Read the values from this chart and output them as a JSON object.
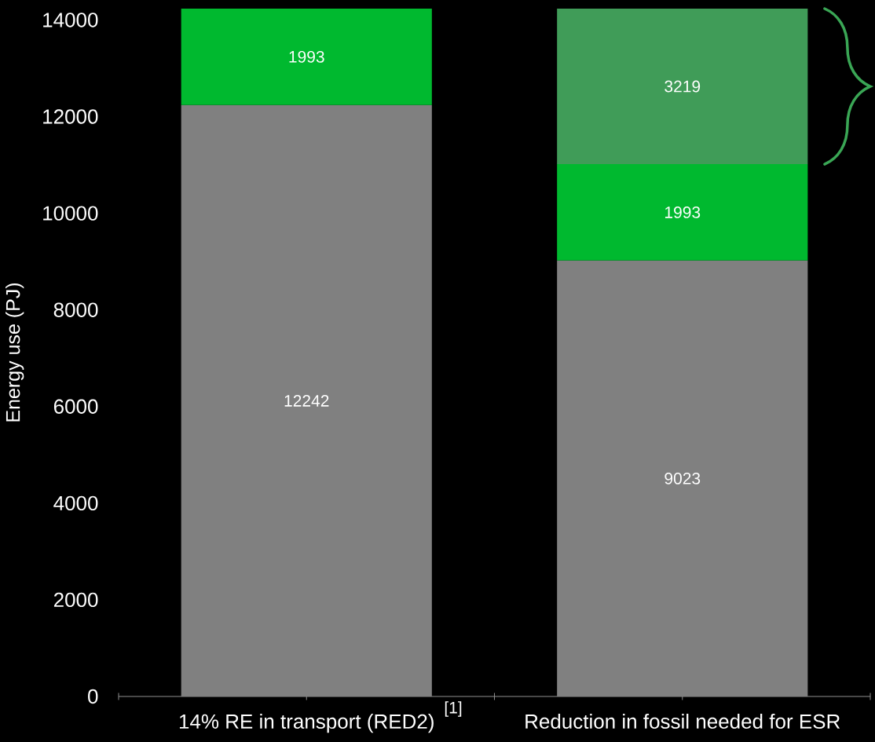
{
  "chart_data": {
    "type": "bar",
    "stacked": true,
    "ylabel": "Energy use (PJ)",
    "categories": [
      "14% RE in transport (RED2)",
      "Reduction in fossil needed for ESR"
    ],
    "series": [
      {
        "color": "#808080",
        "values": [
          12242,
          9023
        ]
      },
      {
        "color": "#00b92f",
        "values": [
          1993,
          1993
        ]
      },
      {
        "color": "#409c58",
        "values": [
          null,
          3219
        ]
      }
    ],
    "ylim": [
      0,
      14235
    ],
    "yticks": [
      0,
      2000,
      4000,
      6000,
      8000,
      10000,
      12000,
      14000
    ],
    "data_labels": true,
    "annotations": [
      "[1]"
    ]
  }
}
